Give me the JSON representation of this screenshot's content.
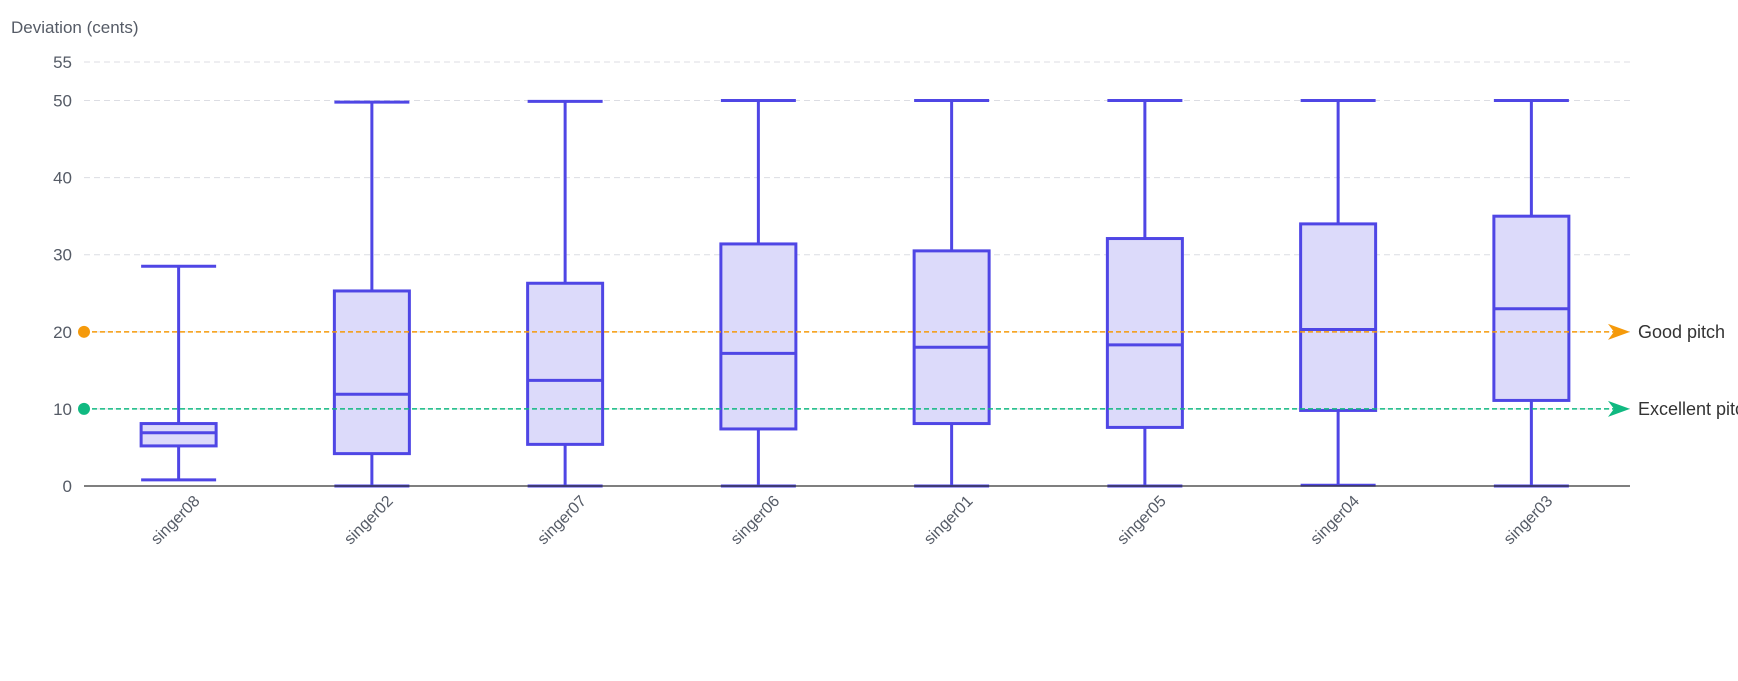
{
  "chart_data": {
    "type": "boxplot",
    "ylabel": "Deviation (cents)",
    "ylim": [
      0,
      55
    ],
    "yticks": [
      0,
      10,
      20,
      30,
      40,
      50,
      55
    ],
    "grid": true,
    "categories": [
      "singer08",
      "singer02",
      "singer07",
      "singer06",
      "singer01",
      "singer05",
      "singer04",
      "singer03"
    ],
    "series": [
      {
        "color": "#4f46e5",
        "fill": "#dcdafa",
        "boxes": [
          {
            "min": 0.8,
            "q1": 5.2,
            "median": 6.9,
            "q3": 8.1,
            "max": 28.5
          },
          {
            "min": 0.0,
            "q1": 4.2,
            "median": 11.9,
            "q3": 25.3,
            "max": 49.8
          },
          {
            "min": 0.0,
            "q1": 5.4,
            "median": 13.7,
            "q3": 26.3,
            "max": 49.9
          },
          {
            "min": 0.0,
            "q1": 7.4,
            "median": 17.2,
            "q3": 31.4,
            "max": 50.0
          },
          {
            "min": 0.0,
            "q1": 8.1,
            "median": 18.0,
            "q3": 30.5,
            "max": 50.0
          },
          {
            "min": 0.0,
            "q1": 7.6,
            "median": 18.3,
            "q3": 32.1,
            "max": 50.0
          },
          {
            "min": 0.1,
            "q1": 9.8,
            "median": 20.3,
            "q3": 34.0,
            "max": 50.0
          },
          {
            "min": 0.0,
            "q1": 11.1,
            "median": 23.0,
            "q3": 35.0,
            "max": 50.0
          }
        ]
      }
    ],
    "reference_lines": [
      {
        "value": 20,
        "label": "Good pitch",
        "color": "#f59a0b"
      },
      {
        "value": 10,
        "label": "Excellent pitch",
        "color": "#10b981"
      }
    ]
  }
}
